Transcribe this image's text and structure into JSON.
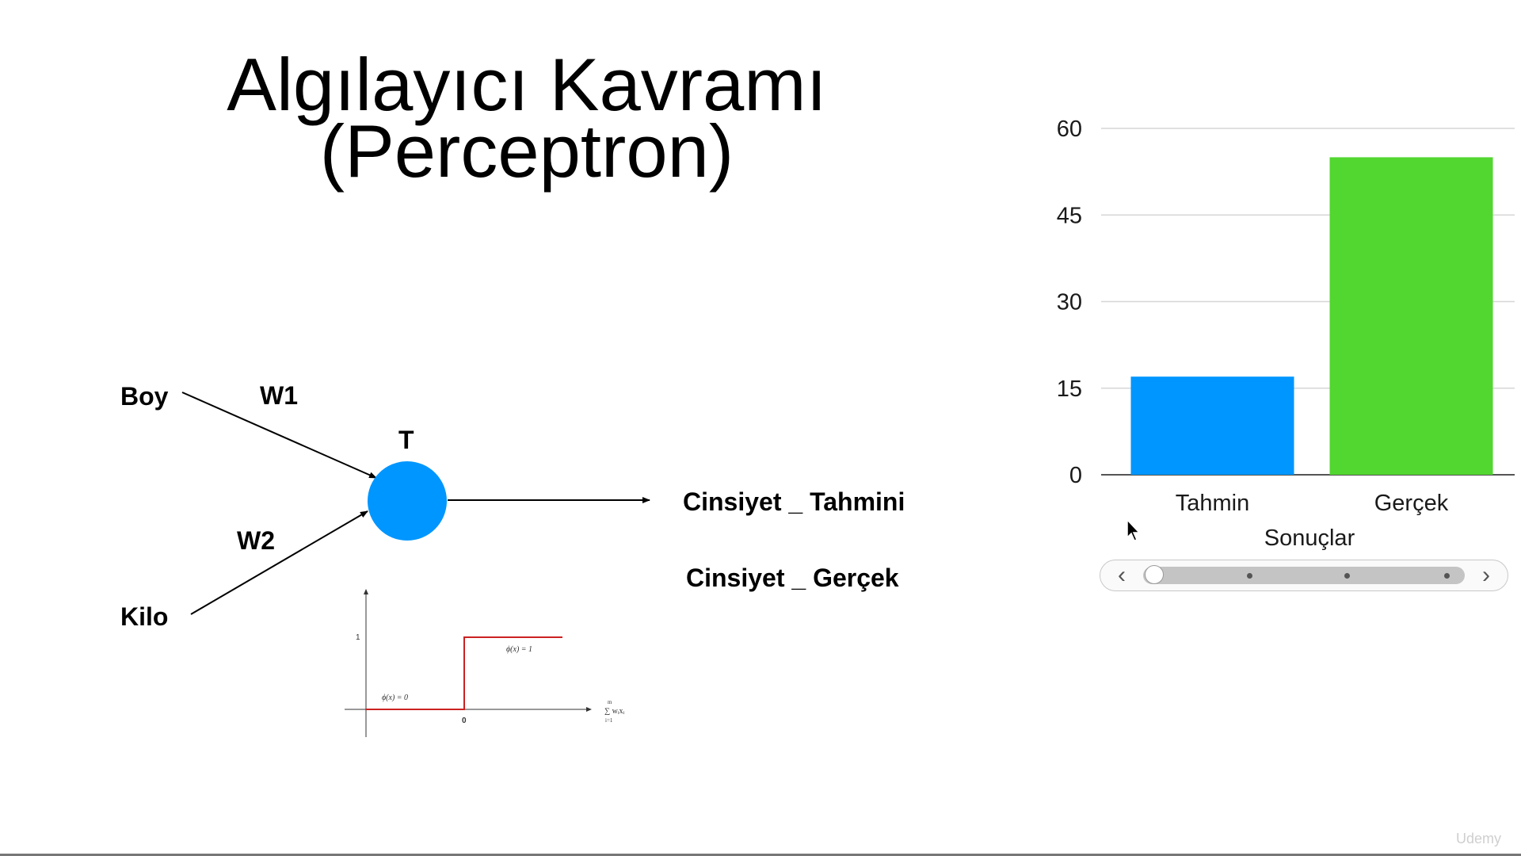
{
  "slide": {
    "title_line1": "Algılayıcı Kavramı",
    "title_line2": "(Perceptron)"
  },
  "diagram": {
    "input1": "Boy",
    "input2": "Kilo",
    "weight1": "W1",
    "weight2": "W2",
    "threshold": "T",
    "output_prediction": "Cinsiyet _ Tahmini",
    "output_actual": "Cinsiyet _ Gerçek",
    "neuron_color": "#0096ff"
  },
  "step_function": {
    "y_tick": "1",
    "x_tick": "0",
    "low_label": "ϕ(x) = 0",
    "high_label": "ϕ(x) = 1",
    "sum_label": "∑ wᵢxᵢ",
    "sum_upper": "m",
    "sum_lower": "i=1",
    "line_color": "#cc2222"
  },
  "chart_data": {
    "type": "bar",
    "categories": [
      "Tahmin",
      "Gerçek"
    ],
    "values": [
      17,
      55
    ],
    "colors": [
      "#0096ff",
      "#52d630"
    ],
    "xlabel": "Sonuçlar",
    "ylabel": "",
    "ylim": [
      0,
      60
    ],
    "yticks": [
      0,
      15,
      30,
      45,
      60
    ],
    "grid": true
  },
  "pager": {
    "prev_icon": "chevron-left-icon",
    "next_icon": "chevron-right-icon",
    "position": 0
  },
  "watermark": "Udemy"
}
